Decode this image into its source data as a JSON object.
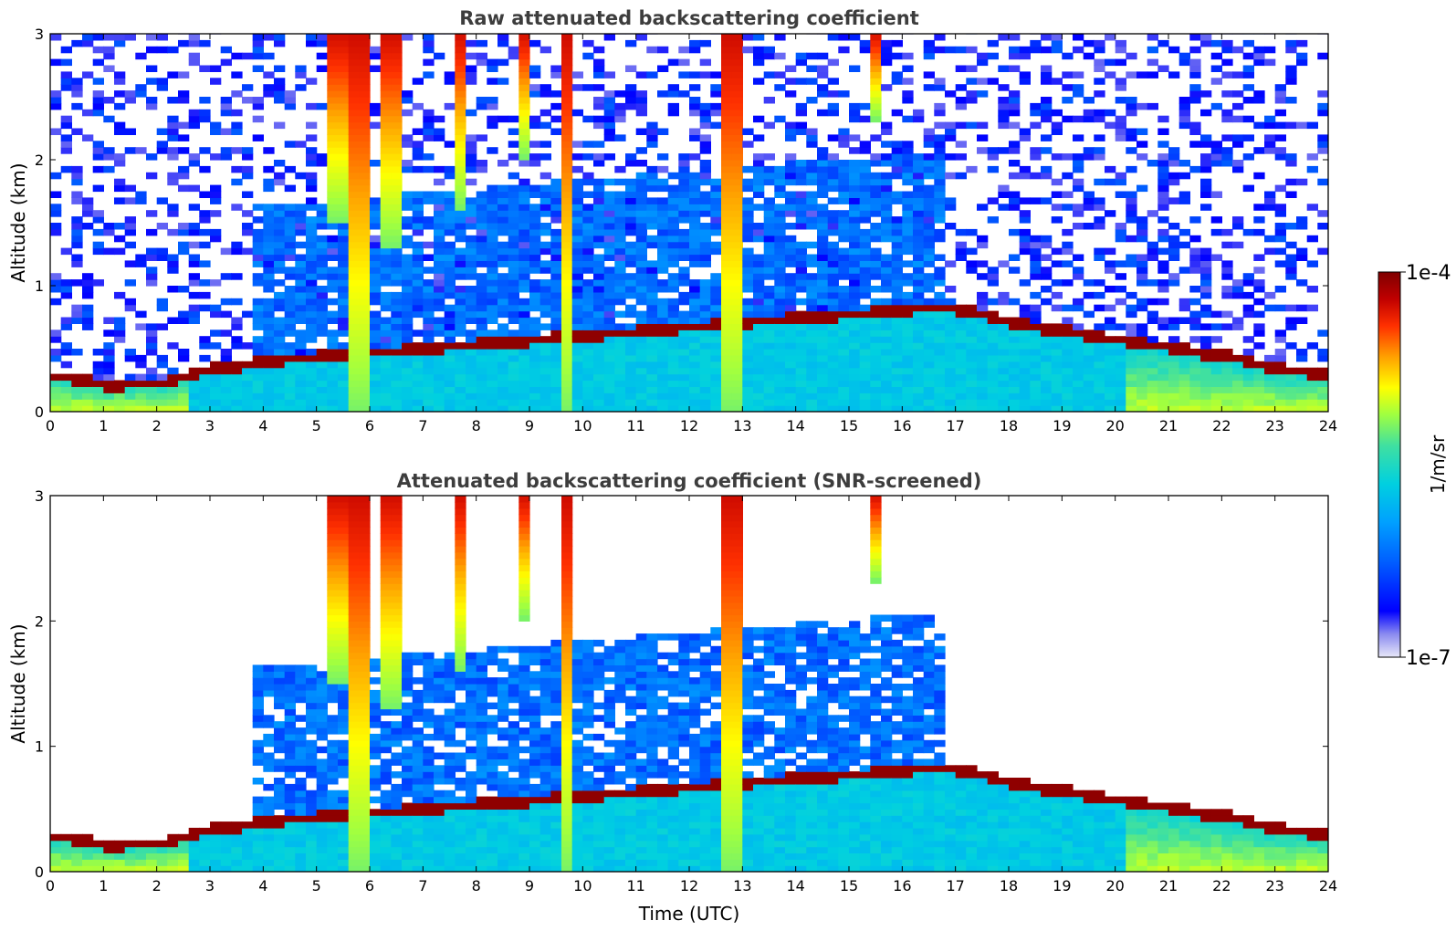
{
  "chart_data": [
    {
      "type": "heatmap",
      "title": "Raw attenuated backscattering coefficient",
      "xlabel": "",
      "ylabel": "Altitude (km)",
      "xlim": [
        0,
        24
      ],
      "ylim": [
        0,
        3
      ],
      "xticks": [
        "0",
        "1",
        "2",
        "3",
        "4",
        "5",
        "6",
        "7",
        "8",
        "9",
        "10",
        "11",
        "12",
        "13",
        "14",
        "15",
        "16",
        "17",
        "18",
        "19",
        "20",
        "21",
        "22",
        "23",
        "24"
      ],
      "yticks": [
        "0",
        "1",
        "2",
        "3"
      ],
      "boundary_layer_top_km": [
        [
          0,
          0.3
        ],
        [
          1,
          0.22
        ],
        [
          2,
          0.25
        ],
        [
          3,
          0.35
        ],
        [
          4,
          0.42
        ],
        [
          5,
          0.45
        ],
        [
          16.7,
          0.85
        ],
        [
          18,
          0.72
        ],
        [
          19,
          0.65
        ],
        [
          20,
          0.58
        ],
        [
          21,
          0.52
        ],
        [
          22,
          0.45
        ],
        [
          23,
          0.35
        ],
        [
          23.8,
          0.32
        ]
      ],
      "cloud_plumes": [
        {
          "t": 5.3,
          "from_km": 1.5,
          "to_km": 3.0
        },
        {
          "t": 5.7,
          "from_km": 0.0,
          "to_km": 3.0
        },
        {
          "t": 6.3,
          "from_km": 1.3,
          "to_km": 3.0
        },
        {
          "t": 7.6,
          "from_km": 1.6,
          "to_km": 3.0
        },
        {
          "t": 8.8,
          "from_km": 2.0,
          "to_km": 3.0
        },
        {
          "t": 9.6,
          "from_km": 0.0,
          "to_km": 3.0
        },
        {
          "t": 12.7,
          "from_km": 0.0,
          "to_km": 3.0
        },
        {
          "t": 15.4,
          "from_km": 2.3,
          "to_km": 3.0
        }
      ]
    },
    {
      "type": "heatmap",
      "title": "Attenuated backscattering coefficient (SNR-screened)",
      "xlabel": "Time (UTC)",
      "ylabel": "Altitude (km)",
      "xlim": [
        0,
        24
      ],
      "ylim": [
        0,
        3
      ],
      "xticks": [
        "0",
        "1",
        "2",
        "3",
        "4",
        "5",
        "6",
        "7",
        "8",
        "9",
        "10",
        "11",
        "12",
        "13",
        "14",
        "15",
        "16",
        "17",
        "18",
        "19",
        "20",
        "21",
        "22",
        "23",
        "24"
      ],
      "yticks": [
        "0",
        "1",
        "2",
        "3"
      ]
    }
  ],
  "colorbar": {
    "label": "1/m/sr",
    "max_label": "1e-4",
    "min_label": "1e-7",
    "scale": "log",
    "colors": [
      "#e8e8f8",
      "#8a8af0",
      "#0000ff",
      "#0060ff",
      "#00a0ff",
      "#00d0e0",
      "#40e0a0",
      "#a0ff40",
      "#ffff00",
      "#ffa000",
      "#ff3000",
      "#c00000",
      "#7f0000"
    ]
  }
}
